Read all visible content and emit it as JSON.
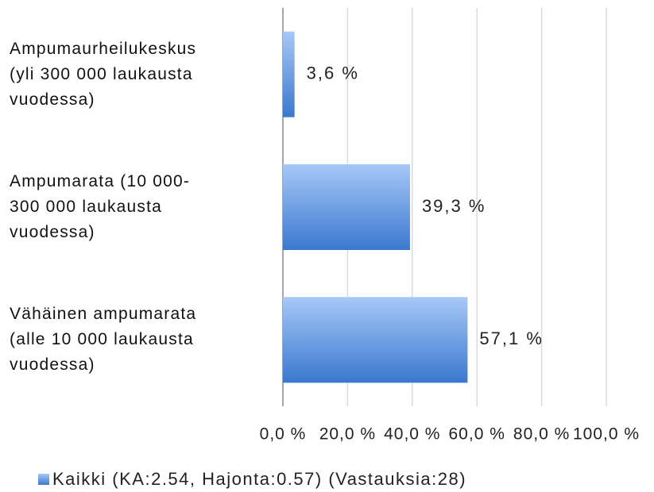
{
  "chart_data": {
    "type": "hbar",
    "categories": [
      "Ampumaurheilukeskus\n(yli 300 000 laukausta\nvuodessa)",
      "Ampumarata (10 000-\n300 000 laukausta\nvuodessa)",
      "Vähäinen ampumarata\n(alle 10 000 laukausta\nvuodessa)"
    ],
    "series": [
      {
        "name": "Kaikki (KA:2.54, Hajonta:0.57) (Vastauksia:28)",
        "color": "#3a78cf",
        "values": [
          3.6,
          39.3,
          57.1
        ],
        "value_labels": [
          "3,6 %",
          "39,3 %",
          "57,1 %"
        ]
      }
    ],
    "xlim": [
      0,
      100
    ],
    "xticks": [
      {
        "value": 0,
        "label": "0,0 %"
      },
      {
        "value": 20,
        "label": "20,0 %"
      },
      {
        "value": 40,
        "label": "40,0 %"
      },
      {
        "value": 60,
        "label": "60,0 %"
      },
      {
        "value": 80,
        "label": "80,0 %"
      },
      {
        "value": 100,
        "label": "100,0 %"
      }
    ],
    "grid": true,
    "legend": "bottom"
  }
}
